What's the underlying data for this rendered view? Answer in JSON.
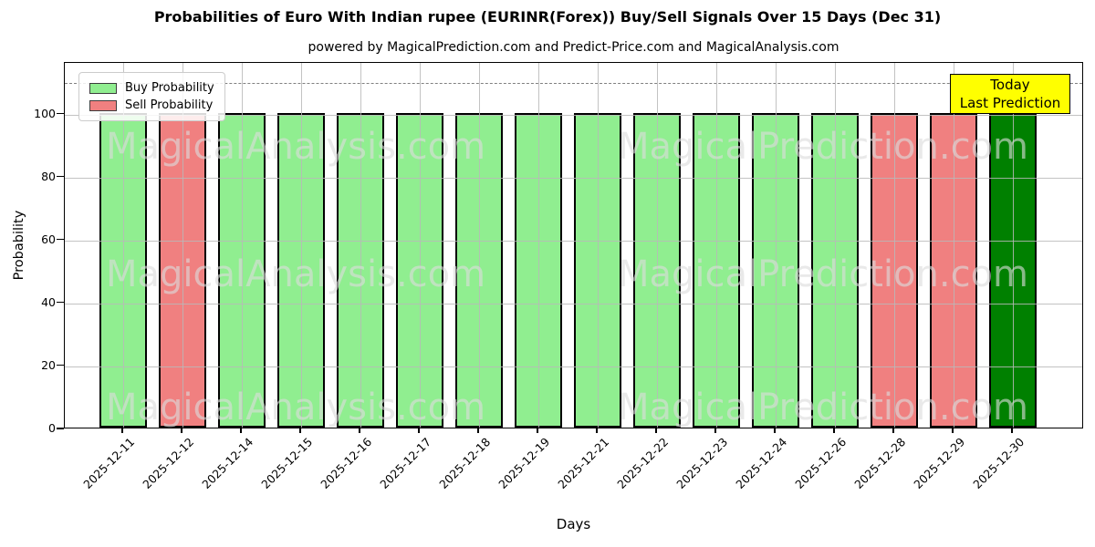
{
  "title": "Probabilities of Euro With Indian rupee (EURINR(Forex)) Buy/Sell Signals Over 15 Days (Dec 31)",
  "subtitle": "powered by MagicalPrediction.com and Predict-Price.com and MagicalAnalysis.com",
  "legend": {
    "items": [
      {
        "label": "Buy Probability",
        "color": "#90ee90"
      },
      {
        "label": "Sell Probability",
        "color": "#f08080"
      }
    ]
  },
  "annotation": {
    "lines": [
      "Today",
      "Last Prediction"
    ],
    "bg_color": "#ffff00"
  },
  "watermark": {
    "texts": [
      "MagicalAnalysis.com",
      "MagicalPrediction.com"
    ]
  },
  "axes": {
    "x_label": "Days",
    "y_label": "Probability",
    "y_ticks": [
      0,
      20,
      40,
      60,
      80,
      100
    ]
  },
  "chart_data": {
    "type": "bar",
    "title": "Probabilities of Euro With Indian rupee (EURINR(Forex)) Buy/Sell Signals Over 15 Days (Dec 31)",
    "xlabel": "Days",
    "ylabel": "Probability",
    "ylim": [
      0,
      116.5
    ],
    "grid": true,
    "legend_position": "upper left",
    "dashed_line_y": 110,
    "categories": [
      "2025-12-11",
      "2025-12-12",
      "2025-12-14",
      "2025-12-15",
      "2025-12-16",
      "2025-12-17",
      "2025-12-18",
      "2025-12-19",
      "2025-12-21",
      "2025-12-22",
      "2025-12-23",
      "2025-12-24",
      "2025-12-26",
      "2025-12-28",
      "2025-12-29",
      "2025-12-30"
    ],
    "series": [
      {
        "name": "Buy Probability",
        "color": "#90ee90",
        "values": [
          100,
          0,
          100,
          100,
          100,
          100,
          100,
          100,
          100,
          100,
          100,
          100,
          100,
          0,
          0,
          100
        ]
      },
      {
        "name": "Sell Probability",
        "color": "#f08080",
        "values": [
          0,
          100,
          0,
          0,
          0,
          0,
          0,
          0,
          0,
          0,
          0,
          0,
          0,
          100,
          100,
          0
        ]
      }
    ],
    "bars": [
      {
        "date": "2025-12-11",
        "signal": "buy",
        "value": 100,
        "color": "#90ee90"
      },
      {
        "date": "2025-12-12",
        "signal": "sell",
        "value": 100,
        "color": "#f08080"
      },
      {
        "date": "2025-12-14",
        "signal": "buy",
        "value": 100,
        "color": "#90ee90"
      },
      {
        "date": "2025-12-15",
        "signal": "buy",
        "value": 100,
        "color": "#90ee90"
      },
      {
        "date": "2025-12-16",
        "signal": "buy",
        "value": 100,
        "color": "#90ee90"
      },
      {
        "date": "2025-12-17",
        "signal": "buy",
        "value": 100,
        "color": "#90ee90"
      },
      {
        "date": "2025-12-18",
        "signal": "buy",
        "value": 100,
        "color": "#90ee90"
      },
      {
        "date": "2025-12-19",
        "signal": "buy",
        "value": 100,
        "color": "#90ee90"
      },
      {
        "date": "2025-12-21",
        "signal": "buy",
        "value": 100,
        "color": "#90ee90"
      },
      {
        "date": "2025-12-22",
        "signal": "buy",
        "value": 100,
        "color": "#90ee90"
      },
      {
        "date": "2025-12-23",
        "signal": "buy",
        "value": 100,
        "color": "#90ee90"
      },
      {
        "date": "2025-12-24",
        "signal": "buy",
        "value": 100,
        "color": "#90ee90"
      },
      {
        "date": "2025-12-26",
        "signal": "buy",
        "value": 100,
        "color": "#90ee90"
      },
      {
        "date": "2025-12-28",
        "signal": "sell",
        "value": 100,
        "color": "#f08080"
      },
      {
        "date": "2025-12-29",
        "signal": "sell",
        "value": 100,
        "color": "#f08080"
      },
      {
        "date": "2025-12-30",
        "signal": "buy",
        "value": 100,
        "color": "#008000",
        "today": true
      }
    ]
  }
}
